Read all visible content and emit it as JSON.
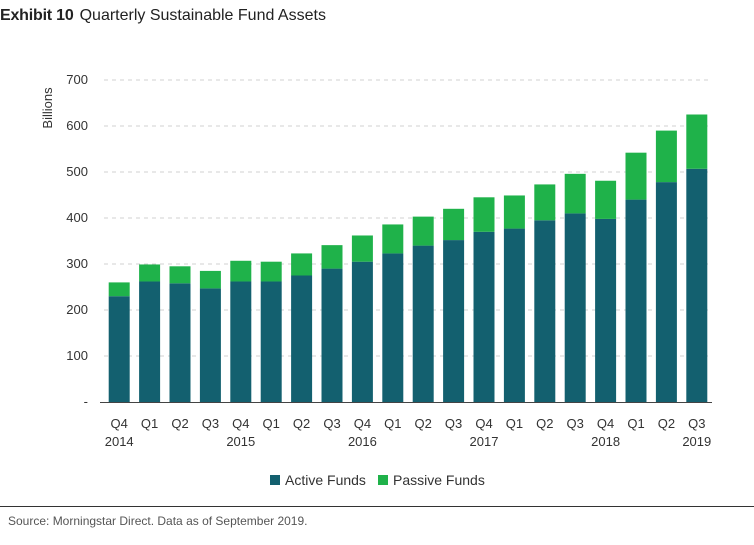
{
  "header": {
    "exhibit": "Exhibit 10",
    "title": "Quarterly Sustainable Fund Assets"
  },
  "footer": {
    "source": "Source: Morningstar Direct. Data as of September 2019."
  },
  "colors": {
    "active": "#13606f",
    "passive": "#1fb24a",
    "grid": "#d0d0d0"
  },
  "chart_data": {
    "type": "bar",
    "stacked": true,
    "title": "Quarterly Sustainable Fund Assets",
    "ylabel": "Billions",
    "xlabel": "",
    "ylim": [
      0,
      700
    ],
    "yticks": [
      "-",
      "100",
      "200",
      "300",
      "400",
      "500",
      "600",
      "700"
    ],
    "ytick_values": [
      0,
      100,
      200,
      300,
      400,
      500,
      600,
      700
    ],
    "grid": "horizontal dashed",
    "legend_position": "bottom",
    "categories": [
      "Q4",
      "Q1",
      "Q2",
      "Q3",
      "Q4",
      "Q1",
      "Q2",
      "Q3",
      "Q4",
      "Q1",
      "Q2",
      "Q3",
      "Q4",
      "Q1",
      "Q2",
      "Q3",
      "Q4",
      "Q1",
      "Q2",
      "Q3"
    ],
    "year_labels": [
      "2014",
      "",
      "",
      "",
      "2015",
      "",
      "",
      "",
      "2016",
      "",
      "",
      "",
      "2017",
      "",
      "",
      "",
      "2018",
      "",
      "",
      "2019"
    ],
    "series": [
      {
        "name": "Active Funds",
        "values": [
          230,
          262,
          258,
          247,
          262,
          262,
          275,
          290,
          305,
          323,
          340,
          352,
          370,
          377,
          395,
          410,
          398,
          440,
          478,
          507
        ]
      },
      {
        "name": "Passive Funds",
        "values": [
          30,
          37,
          37,
          38,
          45,
          43,
          48,
          51,
          57,
          63,
          63,
          68,
          75,
          72,
          78,
          86,
          83,
          102,
          112,
          118
        ]
      }
    ]
  }
}
